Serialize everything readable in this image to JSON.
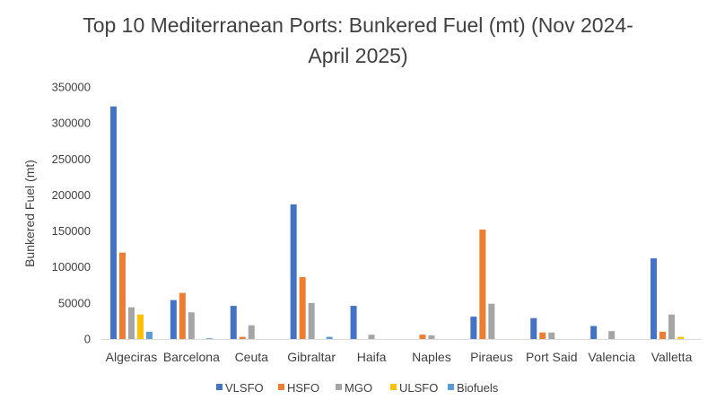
{
  "chart_data": {
    "type": "bar",
    "title_line1": "Top 10 Mediterranean Ports: Bunkered Fuel (mt) (Nov 2024-",
    "title_line2": "April 2025)",
    "ylabel": "Bunkered Fuel (mt)",
    "xlabel": "",
    "ylim": [
      0,
      350000
    ],
    "yticks": [
      "0",
      "50000",
      "100000",
      "150000",
      "200000",
      "250000",
      "300000",
      "350000"
    ],
    "grid": false,
    "legend_position": "bottom",
    "categories": [
      "Algeciras",
      "Barcelona",
      "Ceuta",
      "Gibraltar",
      "Haifa",
      "Naples",
      "Piraeus",
      "Port Said",
      "Valencia",
      "Valletta"
    ],
    "series": [
      {
        "name": "VLSFO",
        "color": "#4472C4",
        "values": [
          323000,
          54000,
          46000,
          187000,
          46000,
          0,
          31000,
          29000,
          18000,
          112000
        ]
      },
      {
        "name": "HSFO",
        "color": "#ED7D31",
        "values": [
          120000,
          64000,
          3000,
          86000,
          0,
          6000,
          152000,
          9000,
          0,
          10000
        ]
      },
      {
        "name": "MGO",
        "color": "#A5A5A5",
        "values": [
          44000,
          37000,
          19000,
          50000,
          6000,
          5000,
          49000,
          9000,
          11000,
          34000
        ]
      },
      {
        "name": "ULSFO",
        "color": "#FFC000",
        "values": [
          34000,
          0,
          0,
          0,
          0,
          0,
          0,
          0,
          0,
          3000
        ]
      },
      {
        "name": "Biofuels",
        "color": "#5B9BD5",
        "values": [
          10000,
          1000,
          0,
          3000,
          0,
          0,
          0,
          0,
          0,
          0
        ]
      }
    ]
  }
}
